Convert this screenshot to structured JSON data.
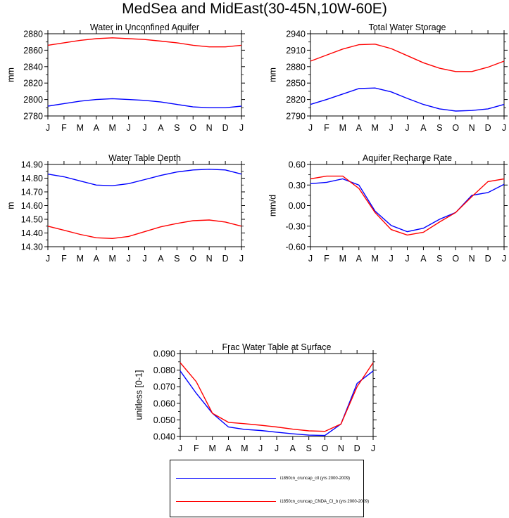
{
  "title": "MedSea and MidEast(30-45N,10W-60E)",
  "months": [
    "J",
    "F",
    "M",
    "A",
    "M",
    "J",
    "J",
    "A",
    "S",
    "O",
    "N",
    "D",
    "J"
  ],
  "legend": [
    {
      "label": "i1850cn_cruncap_ctl (yrs 2000-2009)",
      "color": "#0000ff"
    },
    {
      "label": "i1850cn_cruncap_CNDA_CI_b (yrs 2000-2009)",
      "color": "#ff0000"
    }
  ],
  "chart_data": [
    {
      "type": "line",
      "title": "Water in Unconfined Aquifer",
      "ylabel": "mm",
      "ylim": [
        2780,
        2880
      ],
      "yticks": [
        "2780",
        "2800",
        "2820",
        "2840",
        "2860",
        "2880"
      ],
      "series": [
        {
          "color": "#0000ff",
          "values": [
            2792,
            2795,
            2798,
            2800,
            2801,
            2800,
            2799,
            2797,
            2794,
            2791,
            2790,
            2790,
            2792
          ]
        },
        {
          "color": "#ff0000",
          "values": [
            2866,
            2869,
            2872,
            2874,
            2875,
            2874,
            2873,
            2871,
            2869,
            2866,
            2864,
            2864,
            2866
          ]
        }
      ]
    },
    {
      "type": "line",
      "title": "Total Water Storage",
      "ylabel": "mm",
      "ylim": [
        2790,
        2940
      ],
      "yticks": [
        "2790",
        "2820",
        "2850",
        "2880",
        "2910",
        "2940"
      ],
      "series": [
        {
          "color": "#0000ff",
          "values": [
            2811,
            2820,
            2830,
            2840,
            2841,
            2834,
            2822,
            2811,
            2803,
            2799,
            2800,
            2803,
            2811
          ]
        },
        {
          "color": "#ff0000",
          "values": [
            2890,
            2901,
            2912,
            2920,
            2921,
            2913,
            2900,
            2887,
            2877,
            2871,
            2871,
            2879,
            2890
          ]
        }
      ]
    },
    {
      "type": "line",
      "title": "Water Table Depth",
      "ylabel": "m",
      "ylim": [
        14.3,
        14.9
      ],
      "yticks": [
        "14.30",
        "14.40",
        "14.50",
        "14.60",
        "14.70",
        "14.80",
        "14.90"
      ],
      "series": [
        {
          "color": "#0000ff",
          "values": [
            14.83,
            14.81,
            14.78,
            14.75,
            14.745,
            14.76,
            14.79,
            14.82,
            14.845,
            14.86,
            14.865,
            14.86,
            14.83
          ]
        },
        {
          "color": "#ff0000",
          "values": [
            14.45,
            14.42,
            14.39,
            14.365,
            14.36,
            14.375,
            14.41,
            14.445,
            14.47,
            14.49,
            14.495,
            14.48,
            14.45
          ]
        }
      ]
    },
    {
      "type": "line",
      "title": "Aquifer Recharge Rate",
      "ylabel": "mm/d",
      "ylim": [
        -0.6,
        0.6
      ],
      "yticks": [
        "-0.60",
        "-0.30",
        "0.00",
        "0.30",
        "0.60"
      ],
      "series": [
        {
          "color": "#0000ff",
          "values": [
            0.32,
            0.34,
            0.39,
            0.3,
            -0.08,
            -0.29,
            -0.38,
            -0.33,
            -0.2,
            -0.1,
            0.15,
            0.19,
            0.31
          ]
        },
        {
          "color": "#ff0000",
          "values": [
            0.39,
            0.43,
            0.43,
            0.25,
            -0.1,
            -0.35,
            -0.43,
            -0.39,
            -0.24,
            -0.1,
            0.13,
            0.35,
            0.39
          ]
        }
      ]
    },
    {
      "type": "line",
      "title": "Frac Water Table at Surface",
      "ylabel": "unitless [0-1]",
      "ylim": [
        0.04,
        0.09
      ],
      "yticks": [
        "0.040",
        "0.050",
        "0.060",
        "0.070",
        "0.080",
        "0.090"
      ],
      "series": [
        {
          "color": "#0000ff",
          "values": [
            0.0795,
            0.066,
            0.054,
            0.0457,
            0.0443,
            0.0436,
            0.0426,
            0.0416,
            0.0408,
            0.0406,
            0.0475,
            0.072,
            0.0795
          ]
        },
        {
          "color": "#ff0000",
          "values": [
            0.0845,
            0.073,
            0.054,
            0.0485,
            0.0477,
            0.0468,
            0.0457,
            0.0444,
            0.0434,
            0.0431,
            0.0475,
            0.07,
            0.0845
          ]
        }
      ]
    }
  ]
}
